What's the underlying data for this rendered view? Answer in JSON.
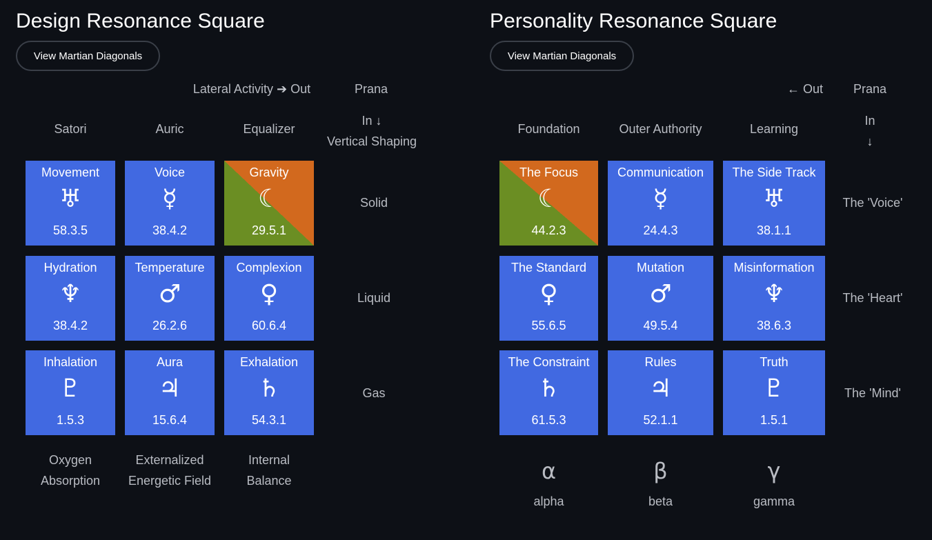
{
  "design": {
    "title": "Design Resonance Square",
    "button_label": "View Martian Diagonals",
    "lateral_label": "Lateral Activity",
    "out_label": "Out",
    "prana_label": "Prana",
    "in_label": "In",
    "vertical_label": "Vertical Shaping",
    "columns": [
      "Satori",
      "Auric",
      "Equalizer"
    ],
    "rows": [
      "Solid",
      "Liquid",
      "Gas"
    ],
    "footers": [
      [
        "Oxygen",
        "Absorption"
      ],
      [
        "Externalized",
        "Energetic Field"
      ],
      [
        "Internal",
        "Balance"
      ]
    ],
    "tiles": [
      [
        {
          "name": "Movement",
          "glyph": "♅",
          "icon": "uranus-icon",
          "code": "58.3.5"
        },
        {
          "name": "Voice",
          "glyph": "☿",
          "icon": "mercury-icon",
          "code": "38.4.2"
        },
        {
          "name": "Gravity",
          "glyph": "☾",
          "icon": "moon-icon",
          "code": "29.5.1"
        }
      ],
      [
        {
          "name": "Hydration",
          "glyph": "♆",
          "icon": "neptune-icon",
          "code": "38.4.2"
        },
        {
          "name": "Temperature",
          "glyph": "♂",
          "icon": "mars-icon",
          "code": "26.2.6"
        },
        {
          "name": "Complexion",
          "glyph": "♀",
          "icon": "venus-icon",
          "code": "60.6.4"
        }
      ],
      [
        {
          "name": "Inhalation",
          "glyph": "♇",
          "icon": "pluto-icon",
          "code": "1.5.3"
        },
        {
          "name": "Aura",
          "glyph": "♃",
          "icon": "jupiter-icon",
          "code": "15.6.4"
        },
        {
          "name": "Exhalation",
          "glyph": "♄",
          "icon": "saturn-icon",
          "code": "54.3.1"
        }
      ]
    ]
  },
  "personality": {
    "title": "Personality Resonance Square",
    "button_label": "View Martian Diagonals",
    "out_label": "Out",
    "prana_label": "Prana",
    "in_label": "In",
    "columns": [
      "Foundation",
      "Outer Authority",
      "Learning"
    ],
    "rows": [
      "The 'Voice'",
      "The 'Heart'",
      "The 'Mind'"
    ],
    "greek": [
      {
        "symbol": "α",
        "name": "alpha"
      },
      {
        "symbol": "β",
        "name": "beta"
      },
      {
        "symbol": "γ",
        "name": "gamma"
      }
    ],
    "tiles": [
      [
        {
          "name": "The Focus",
          "glyph": "☾",
          "icon": "moon-icon",
          "code": "44.2.3"
        },
        {
          "name": "Communication",
          "glyph": "☿",
          "icon": "mercury-icon",
          "code": "24.4.3"
        },
        {
          "name": "The Side Track",
          "glyph": "♅",
          "icon": "uranus-icon",
          "code": "38.1.1"
        }
      ],
      [
        {
          "name": "The Standard",
          "glyph": "♀",
          "icon": "venus-icon",
          "code": "55.6.5"
        },
        {
          "name": "Mutation",
          "glyph": "♂",
          "icon": "mars-icon",
          "code": "49.5.4"
        },
        {
          "name": "Misinformation",
          "glyph": "♆",
          "icon": "neptune-icon",
          "code": "38.6.3"
        }
      ],
      [
        {
          "name": "The Constraint",
          "glyph": "♄",
          "icon": "saturn-icon",
          "code": "61.5.3"
        },
        {
          "name": "Rules",
          "glyph": "♃",
          "icon": "jupiter-icon",
          "code": "52.1.1"
        },
        {
          "name": "Truth",
          "glyph": "♇",
          "icon": "pluto-icon",
          "code": "1.5.1"
        }
      ]
    ]
  },
  "colors": {
    "tile_blue": "#4169e1",
    "tile_orange": "#d2691e",
    "tile_green": "#6b8e23",
    "background": "#0d1016"
  }
}
